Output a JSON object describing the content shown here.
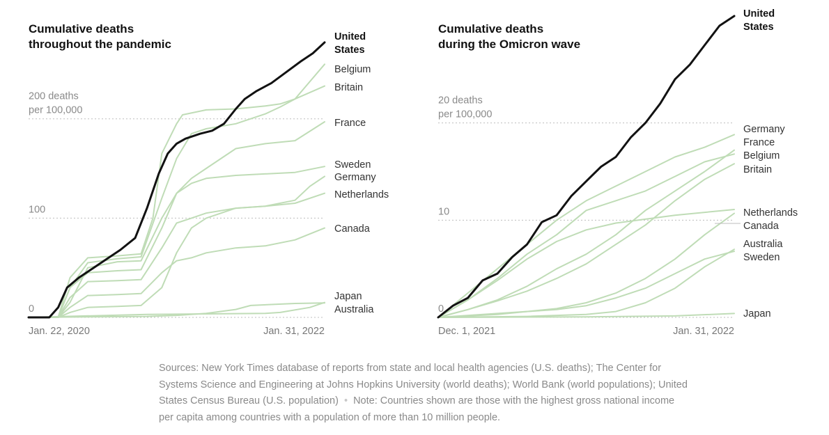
{
  "colors": {
    "us": "#121212",
    "country": "#bfdcb6",
    "grid": "#bdbdbd"
  },
  "chart_data": [
    {
      "type": "line",
      "title": [
        "Cumulative deaths",
        "throughout the pandemic"
      ],
      "units": "deaths per 100,000",
      "ylim": [
        0,
        265
      ],
      "y_ticks": [
        {
          "value": 0,
          "label": [
            "0"
          ]
        },
        {
          "value": 100,
          "label": [
            "100"
          ]
        },
        {
          "value": 200,
          "label": [
            "200 deaths",
            "per 100,000"
          ]
        }
      ],
      "x_ticks": [
        {
          "t": 0,
          "label": "Jan. 22, 2020"
        },
        {
          "t": 1,
          "label": "Jan. 31, 2022"
        }
      ],
      "series": [
        {
          "name": "Belgium",
          "label": [
            "Belgium"
          ],
          "t": [
            0,
            0.05,
            0.1,
            0.14,
            0.2,
            0.3,
            0.38,
            0.42,
            0.45,
            0.5,
            0.52,
            0.6,
            0.7,
            0.8,
            0.85,
            0.9,
            1
          ],
          "values": [
            0,
            0,
            0,
            40,
            60,
            62,
            64,
            100,
            165,
            195,
            204,
            209,
            210,
            213,
            215,
            220,
            255
          ]
        },
        {
          "name": "Britain",
          "label": [
            "Britain"
          ],
          "t": [
            0,
            0.06,
            0.1,
            0.14,
            0.2,
            0.3,
            0.38,
            0.45,
            0.5,
            0.55,
            0.6,
            0.7,
            0.8,
            0.85,
            0.9,
            1
          ],
          "values": [
            0,
            0,
            0,
            30,
            55,
            59,
            61,
            120,
            160,
            185,
            190,
            195,
            205,
            212,
            220,
            233
          ]
        },
        {
          "name": "France",
          "label": [
            "France"
          ],
          "t": [
            0,
            0.06,
            0.1,
            0.14,
            0.2,
            0.3,
            0.38,
            0.45,
            0.5,
            0.55,
            0.6,
            0.7,
            0.8,
            0.9,
            1
          ],
          "values": [
            0,
            0,
            0,
            30,
            45,
            47,
            48,
            90,
            125,
            140,
            150,
            170,
            175,
            178,
            197
          ]
        },
        {
          "name": "Sweden",
          "label": [
            "Sweden"
          ],
          "t": [
            0,
            0.06,
            0.1,
            0.14,
            0.2,
            0.3,
            0.38,
            0.45,
            0.5,
            0.55,
            0.6,
            0.7,
            0.9,
            1
          ],
          "values": [
            0,
            0,
            0,
            15,
            50,
            56,
            57,
            100,
            125,
            135,
            140,
            143,
            146,
            152
          ]
        },
        {
          "name": "Germany",
          "label": [
            "Germany"
          ],
          "t": [
            0,
            0.06,
            0.1,
            0.14,
            0.2,
            0.3,
            0.38,
            0.45,
            0.5,
            0.55,
            0.6,
            0.7,
            0.8,
            0.9,
            0.95,
            1
          ],
          "values": [
            0,
            0,
            0,
            5,
            10,
            11,
            12,
            30,
            65,
            90,
            100,
            110,
            112,
            118,
            132,
            142
          ]
        },
        {
          "name": "Netherlands",
          "label": [
            "Netherlands"
          ],
          "t": [
            0,
            0.06,
            0.1,
            0.14,
            0.2,
            0.3,
            0.38,
            0.45,
            0.5,
            0.55,
            0.6,
            0.7,
            0.8,
            0.9,
            1
          ],
          "values": [
            0,
            0,
            0,
            20,
            36,
            37,
            38,
            70,
            95,
            100,
            105,
            110,
            112,
            115,
            125
          ]
        },
        {
          "name": "Canada",
          "label": [
            "Canada"
          ],
          "t": [
            0,
            0.06,
            0.1,
            0.14,
            0.2,
            0.3,
            0.38,
            0.45,
            0.5,
            0.55,
            0.6,
            0.7,
            0.8,
            0.9,
            1
          ],
          "values": [
            0,
            0,
            0,
            10,
            22,
            23,
            24,
            45,
            57,
            60,
            65,
            70,
            72,
            78,
            90
          ]
        },
        {
          "name": "Japan",
          "label": [
            "Japan"
          ],
          "t": [
            0,
            0.2,
            0.4,
            0.5,
            0.6,
            0.7,
            0.75,
            0.9,
            1
          ],
          "values": [
            0,
            0.5,
            1,
            2,
            4,
            8,
            12,
            14,
            14.5
          ]
        },
        {
          "name": "Australia",
          "label": [
            "Australia"
          ],
          "t": [
            0,
            0.4,
            0.6,
            0.8,
            0.85,
            0.95,
            1
          ],
          "values": [
            0,
            3,
            3.5,
            4,
            5,
            10,
            15
          ]
        },
        {
          "name": "United States",
          "label": [
            "United",
            "States"
          ],
          "highlight": true,
          "t": [
            0,
            0.07,
            0.1,
            0.13,
            0.17,
            0.22,
            0.27,
            0.31,
            0.36,
            0.4,
            0.44,
            0.47,
            0.5,
            0.53,
            0.58,
            0.62,
            0.66,
            0.7,
            0.73,
            0.77,
            0.82,
            0.87,
            0.92,
            0.96,
            1
          ],
          "values": [
            0,
            0,
            10,
            30,
            40,
            50,
            60,
            68,
            80,
            110,
            145,
            165,
            175,
            180,
            185,
            188,
            195,
            210,
            220,
            228,
            236,
            247,
            258,
            266,
            277
          ]
        }
      ]
    },
    {
      "type": "line",
      "title": [
        "Cumulative deaths",
        "during the Omicron wave"
      ],
      "units": "deaths per 100,000",
      "ylim": [
        0,
        31.5
      ],
      "y_ticks": [
        {
          "value": 0,
          "label": [
            "0"
          ]
        },
        {
          "value": 10,
          "label": [
            "10"
          ]
        },
        {
          "value": 20,
          "label": [
            "20 deaths",
            "per 100,000"
          ]
        }
      ],
      "x_ticks": [
        {
          "t": 0,
          "label": "Dec. 1, 2021"
        },
        {
          "t": 1,
          "label": "Jan. 31, 2022"
        }
      ],
      "series": [
        {
          "name": "Germany",
          "label": [
            "Germany"
          ],
          "t": [
            0,
            0.1,
            0.2,
            0.3,
            0.4,
            0.5,
            0.6,
            0.7,
            0.8,
            0.9,
            1
          ],
          "values": [
            0,
            2.5,
            5,
            7.5,
            10,
            12,
            13.5,
            15,
            16.5,
            17.5,
            18.8
          ]
        },
        {
          "name": "France",
          "label": [
            "France"
          ],
          "t": [
            0,
            0.1,
            0.2,
            0.3,
            0.4,
            0.5,
            0.6,
            0.7,
            0.8,
            0.9,
            1
          ],
          "values": [
            0,
            0.8,
            1.8,
            3.2,
            5,
            6.5,
            8.5,
            11,
            13,
            15,
            17.2
          ]
        },
        {
          "name": "Belgium",
          "label": [
            "Belgium"
          ],
          "t": [
            0,
            0.1,
            0.2,
            0.3,
            0.4,
            0.5,
            0.6,
            0.7,
            0.8,
            0.9,
            1
          ],
          "values": [
            0,
            1.8,
            4,
            6.5,
            8.5,
            11,
            12,
            13,
            14.5,
            16,
            16.8
          ]
        },
        {
          "name": "Britain",
          "label": [
            "Britain"
          ],
          "t": [
            0,
            0.1,
            0.2,
            0.3,
            0.4,
            0.5,
            0.6,
            0.7,
            0.8,
            0.9,
            1
          ],
          "values": [
            0,
            0.8,
            1.7,
            2.7,
            4,
            5.5,
            7.5,
            9.5,
            12,
            14.2,
            15.8
          ]
        },
        {
          "name": "Netherlands",
          "label": [
            "Netherlands"
          ],
          "t": [
            0,
            0.1,
            0.2,
            0.3,
            0.4,
            0.5,
            0.6,
            0.7,
            0.8,
            0.9,
            1
          ],
          "values": [
            0,
            1.8,
            3.8,
            6,
            7.8,
            9,
            9.7,
            10.1,
            10.5,
            10.8,
            11.1
          ]
        },
        {
          "name": "Canada",
          "label": [
            "Canada"
          ],
          "t": [
            0,
            0.2,
            0.3,
            0.4,
            0.5,
            0.6,
            0.7,
            0.8,
            0.9,
            1
          ],
          "values": [
            0,
            0.3,
            0.6,
            0.9,
            1.5,
            2.5,
            4,
            6,
            8.5,
            10.7
          ]
        },
        {
          "name": "Australia",
          "label": [
            "Australia"
          ],
          "t": [
            0,
            0.3,
            0.5,
            0.6,
            0.7,
            0.8,
            0.9,
            1
          ],
          "values": [
            0,
            0.1,
            0.3,
            0.6,
            1.5,
            3,
            5.2,
            7
          ]
        },
        {
          "name": "Sweden",
          "label": [
            "Sweden"
          ],
          "t": [
            0,
            0.2,
            0.4,
            0.5,
            0.6,
            0.7,
            0.8,
            0.9,
            1
          ],
          "values": [
            0,
            0.4,
            0.8,
            1.2,
            2,
            3,
            4.5,
            6,
            6.8
          ]
        },
        {
          "name": "Japan",
          "label": [
            "Japan"
          ],
          "t": [
            0,
            0.5,
            0.8,
            1
          ],
          "values": [
            0,
            0.05,
            0.15,
            0.4
          ]
        },
        {
          "name": "United States",
          "label": [
            "United",
            "States"
          ],
          "highlight": true,
          "t": [
            0,
            0.05,
            0.1,
            0.15,
            0.2,
            0.25,
            0.3,
            0.35,
            0.4,
            0.45,
            0.5,
            0.55,
            0.6,
            0.65,
            0.7,
            0.75,
            0.8,
            0.85,
            0.9,
            0.95,
            1
          ],
          "values": [
            0,
            1.2,
            2,
            3.8,
            4.5,
            6.2,
            7.5,
            9.8,
            10.5,
            12.5,
            14,
            15.5,
            16.5,
            18.5,
            20,
            22,
            24.5,
            26,
            28,
            30,
            31
          ]
        }
      ]
    }
  ],
  "source": {
    "sources_text": "Sources: New York Times database of reports from state and local health agencies (U.S. deaths); The Center for Systems Science and Engineering at Johns Hopkins University (world deaths); World Bank (world populations); United States Census Bureau (U.S. population)",
    "separator": "•",
    "note_text": "Note: Countries shown are those with the highest gross national income per capita among countries with a population of more than 10 million people."
  }
}
